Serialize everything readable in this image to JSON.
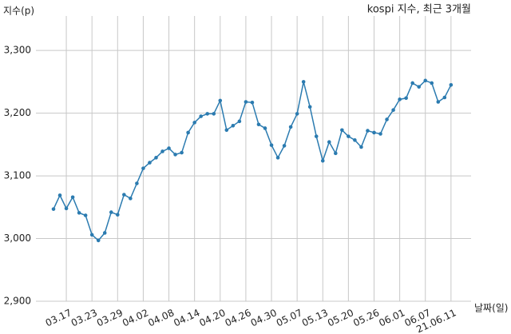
{
  "chart_data": {
    "type": "line",
    "title": "kospi 지수, 최근 3개월",
    "y_label": "지수(p)",
    "x_label": "날짜(일)",
    "categories": [
      null,
      null,
      "03.17",
      null,
      null,
      null,
      "03.23",
      null,
      null,
      null,
      "03.29",
      null,
      null,
      null,
      "04.02",
      null,
      null,
      null,
      "04.08",
      null,
      null,
      null,
      "04.14",
      null,
      null,
      null,
      "04.20",
      null,
      null,
      null,
      "04.26",
      null,
      null,
      null,
      "04.30",
      null,
      null,
      null,
      "05.07",
      null,
      null,
      null,
      "05.13",
      null,
      null,
      null,
      "05.20",
      null,
      null,
      null,
      "05.26",
      null,
      null,
      null,
      "06.01",
      null,
      null,
      null,
      "06.07",
      null,
      null,
      null,
      "21.06.11"
    ],
    "series": [
      {
        "name": "kospi",
        "color": "#2b7bb0",
        "values": [
          3047,
          3069,
          3048,
          3066,
          3041,
          3037,
          3006,
          2997,
          3009,
          3042,
          3038,
          3070,
          3064,
          3088,
          3112,
          3121,
          3129,
          3139,
          3144,
          3134,
          3137,
          3169,
          3185,
          3195,
          3199,
          3199,
          3220,
          3173,
          3180,
          3187,
          3218,
          3217,
          3182,
          3176,
          3149,
          3129,
          3148,
          3178,
          3199,
          3250,
          3210,
          3163,
          3124,
          3154,
          3136,
          3173,
          3163,
          3157,
          3146,
          3172,
          3169,
          3167,
          3190,
          3205,
          3222,
          3224,
          3248,
          3242,
          3252,
          3248,
          3218,
          3225,
          3245
        ]
      }
    ],
    "ylim": [
      2900,
      3355
    ],
    "yticks": [
      {
        "value": 2900,
        "label": "2,900"
      },
      {
        "value": 3000,
        "label": "3,000"
      },
      {
        "value": 3100,
        "label": "3,100"
      },
      {
        "value": 3200,
        "label": "3,200"
      },
      {
        "value": 3300,
        "label": "3,300"
      }
    ],
    "grid": true
  }
}
